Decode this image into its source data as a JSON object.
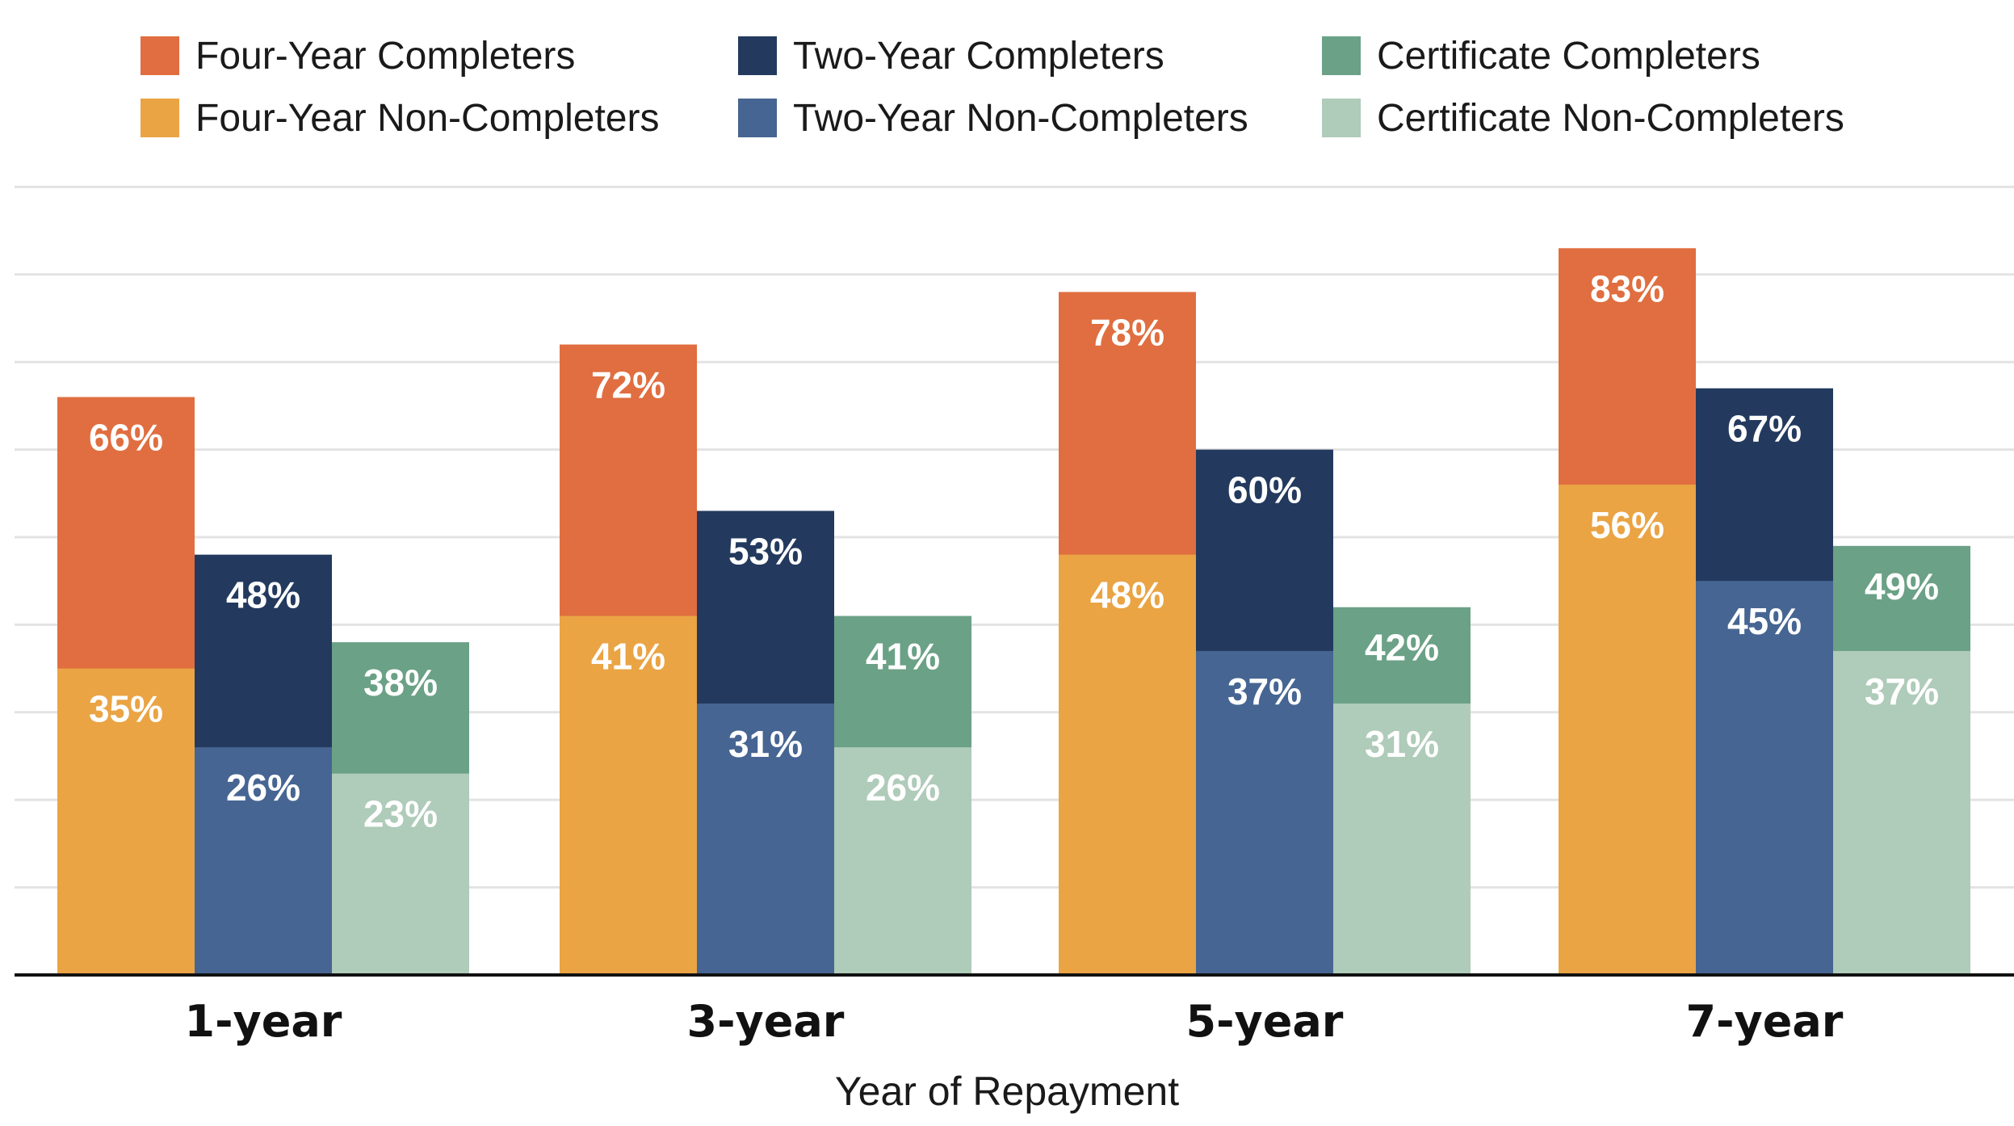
{
  "chart_data": {
    "type": "bar",
    "categories": [
      "1-year",
      "3-year",
      "5-year",
      "7-year"
    ],
    "xlabel": "Year of Repayment",
    "ylabel": "",
    "title": "",
    "ylim": [
      0,
      90
    ],
    "grid": true,
    "legend_position": "top",
    "groups": [
      {
        "name": "Four-Year",
        "completer": {
          "name": "Four-Year Completers",
          "color": "#E06E40",
          "values": [
            66,
            72,
            78,
            83
          ],
          "labels": [
            "66%",
            "72%",
            "78%",
            "83%"
          ]
        },
        "noncompleter": {
          "name": "Four-Year Non-Completers",
          "color": "#EAA444",
          "values": [
            35,
            41,
            48,
            56
          ],
          "labels": [
            "35%",
            "41%",
            "48%",
            "56%"
          ]
        }
      },
      {
        "name": "Two-Year",
        "completer": {
          "name": "Two-Year Completers",
          "color": "#233A5E",
          "values": [
            48,
            53,
            60,
            67
          ],
          "labels": [
            "48%",
            "53%",
            "60%",
            "67%"
          ]
        },
        "noncompleter": {
          "name": "Two-Year Non-Completers",
          "color": "#466592",
          "values": [
            26,
            31,
            37,
            45
          ],
          "labels": [
            "26%",
            "31%",
            "37%",
            "45%"
          ]
        }
      },
      {
        "name": "Certificate",
        "completer": {
          "name": "Certificate Completers",
          "color": "#6BA186",
          "values": [
            38,
            41,
            42,
            49
          ],
          "labels": [
            "38%",
            "41%",
            "42%",
            "49%"
          ]
        },
        "noncompleter": {
          "name": "Certificate Non-Completers",
          "color": "#AFCBB9",
          "values": [
            23,
            26,
            31,
            37
          ],
          "labels": [
            "23%",
            "26%",
            "31%",
            "37%"
          ]
        }
      }
    ]
  },
  "legend": [
    {
      "label": "Four-Year Completers",
      "color": "#E06E40"
    },
    {
      "label": "Two-Year Completers",
      "color": "#233A5E"
    },
    {
      "label": "Certificate Completers",
      "color": "#6BA186"
    },
    {
      "label": "Four-Year Non-Completers",
      "color": "#EAA444"
    },
    {
      "label": "Two-Year Non-Completers",
      "color": "#466592"
    },
    {
      "label": "Certificate Non-Completers",
      "color": "#AFCBB9"
    }
  ]
}
